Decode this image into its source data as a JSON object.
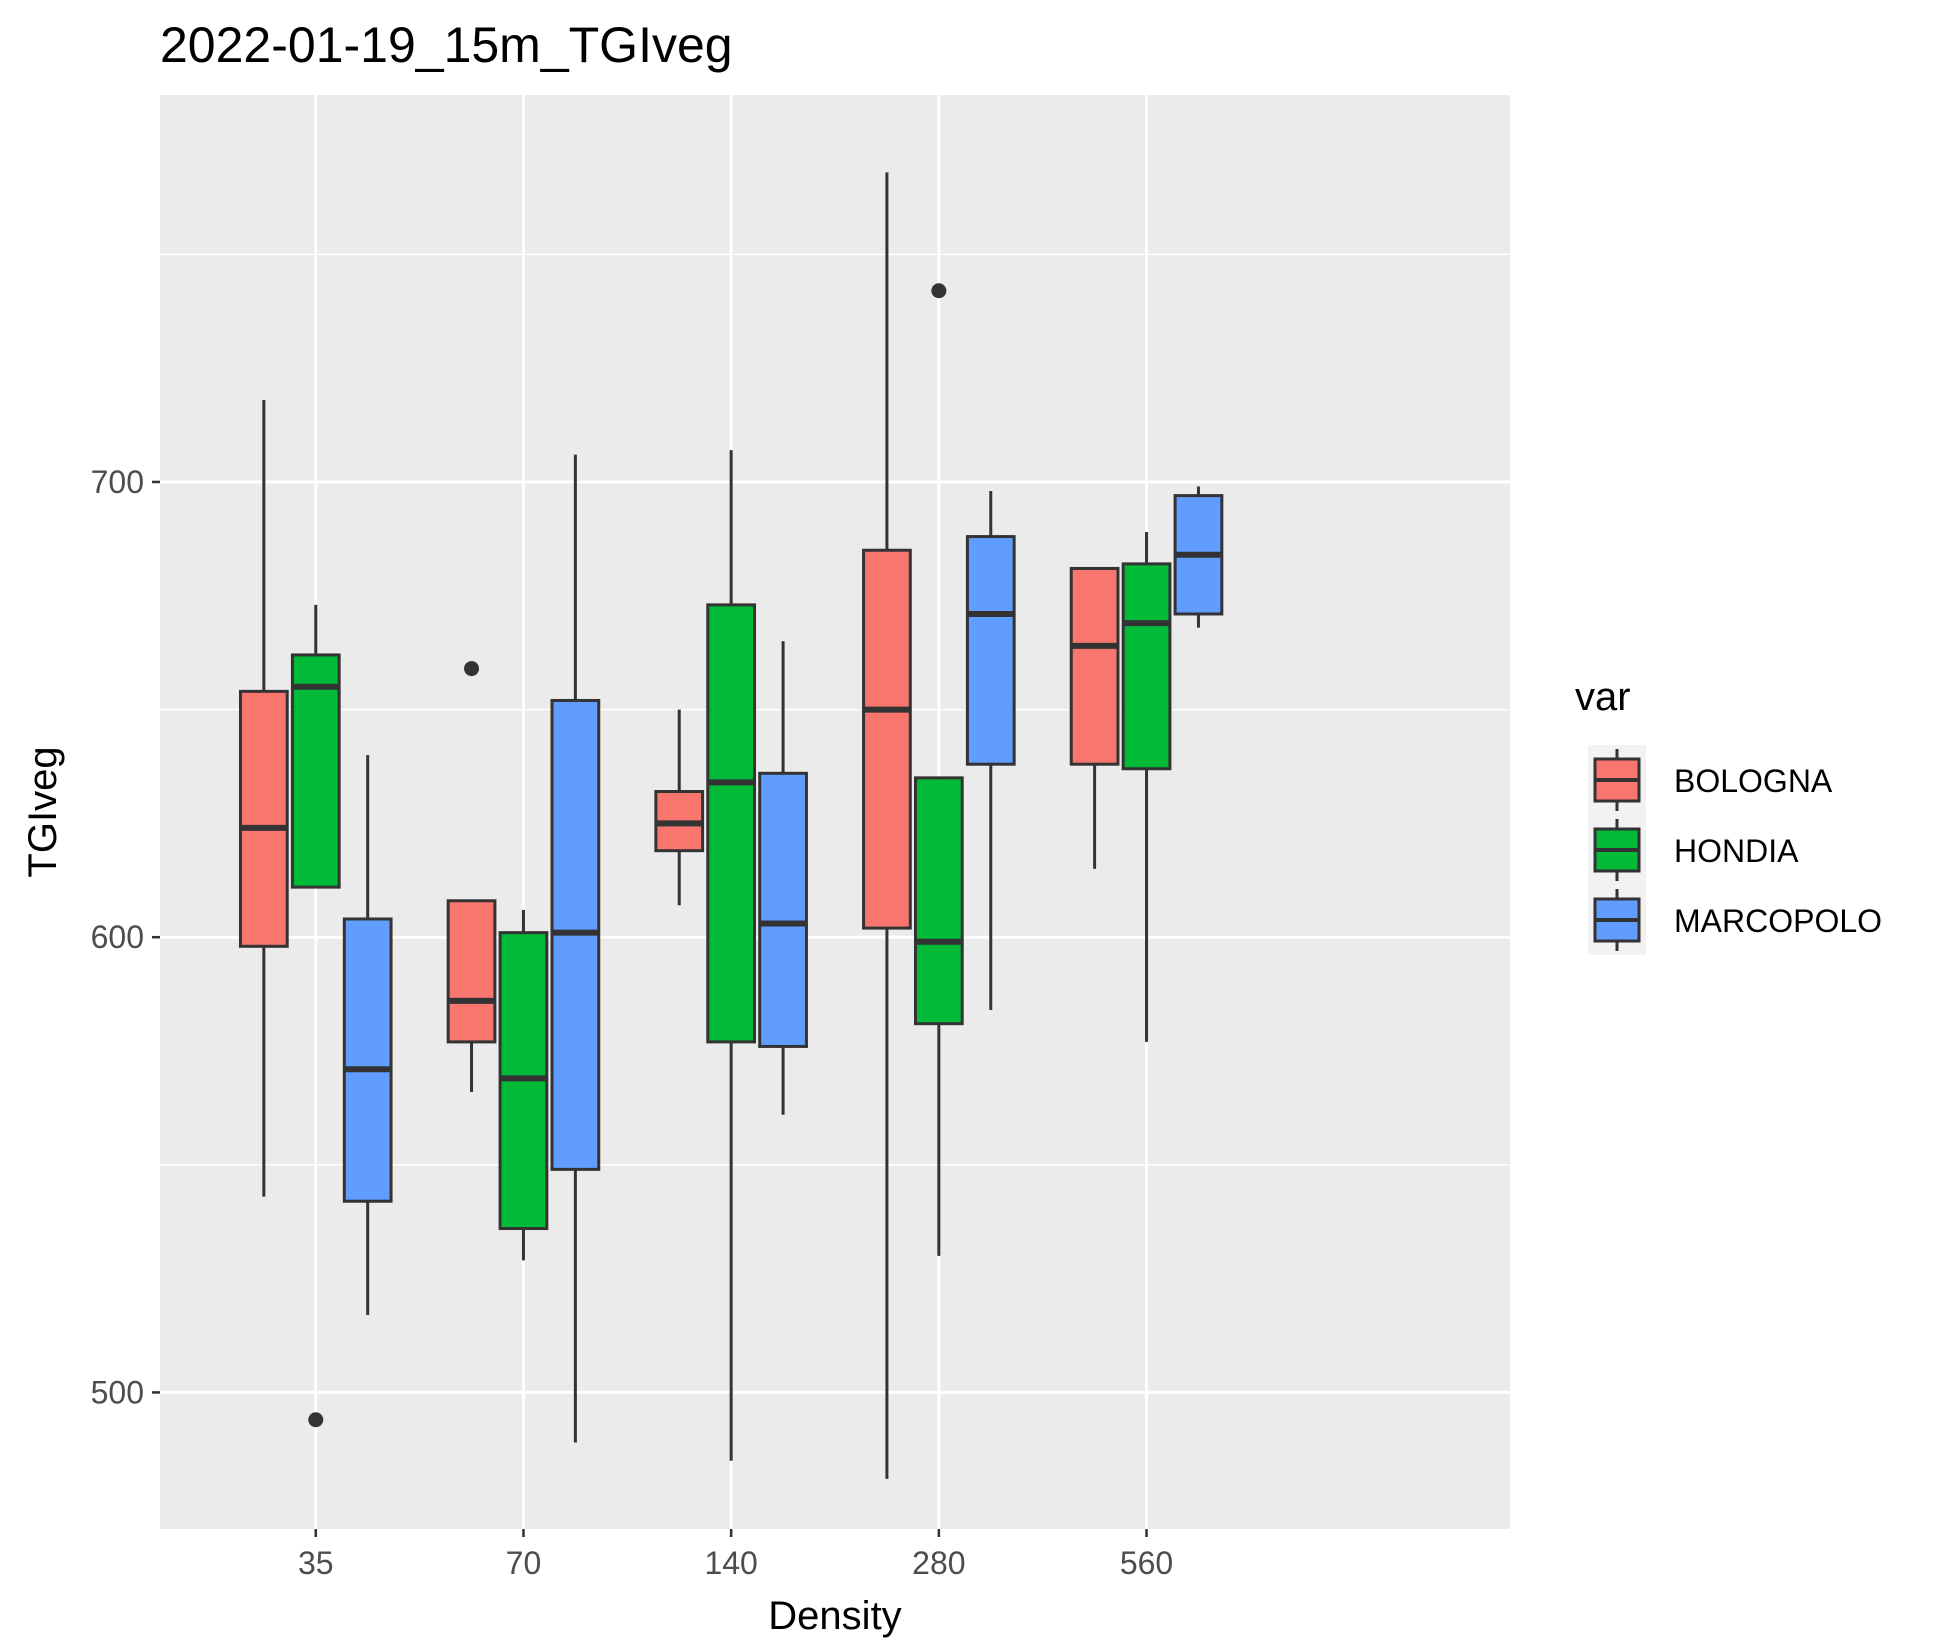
{
  "chart_data": {
    "type": "boxplot",
    "title": "2022-01-19_15m_TGIveg",
    "xlabel": "Density",
    "ylabel": "TGIveg",
    "categories": [
      "35",
      "70",
      "140",
      "280",
      "560"
    ],
    "y_ticks": [
      500,
      600,
      700
    ],
    "ylim": [
      470,
      785
    ],
    "grid": true,
    "legend": {
      "title": "var",
      "position": "right"
    },
    "series": [
      {
        "name": "BOLOGNA",
        "color": "#F8766D",
        "boxes": [
          {
            "category": "35",
            "whisker_low": 543,
            "q1": 598,
            "median": 624,
            "q3": 654,
            "whisker_high": 718,
            "outliers": []
          },
          {
            "category": "70",
            "whisker_low": 566,
            "q1": 577,
            "median": 586,
            "q3": 608,
            "whisker_high": 608,
            "outliers": [
              659
            ]
          },
          {
            "category": "140",
            "whisker_low": 607,
            "q1": 619,
            "median": 625,
            "q3": 632,
            "whisker_high": 650,
            "outliers": []
          },
          {
            "category": "280",
            "whisker_low": 481,
            "q1": 602,
            "median": 650,
            "q3": 685,
            "whisker_high": 768,
            "outliers": []
          },
          {
            "category": "560",
            "whisker_low": 615,
            "q1": 638,
            "median": 664,
            "q3": 681,
            "whisker_high": 681,
            "outliers": []
          }
        ]
      },
      {
        "name": "HONDIA",
        "color": "#00BA38",
        "boxes": [
          {
            "category": "35",
            "whisker_low": 611,
            "q1": 611,
            "median": 655,
            "q3": 662,
            "whisker_high": 673,
            "outliers": [
              494
            ]
          },
          {
            "category": "70",
            "whisker_low": 529,
            "q1": 536,
            "median": 569,
            "q3": 601,
            "whisker_high": 606,
            "outliers": []
          },
          {
            "category": "140",
            "whisker_low": 485,
            "q1": 577,
            "median": 634,
            "q3": 673,
            "whisker_high": 707,
            "outliers": []
          },
          {
            "category": "280",
            "whisker_low": 530,
            "q1": 581,
            "median": 599,
            "q3": 635,
            "whisker_high": 635,
            "outliers": [
              742
            ]
          },
          {
            "category": "560",
            "whisker_low": 577,
            "q1": 637,
            "median": 669,
            "q3": 682,
            "whisker_high": 689,
            "outliers": []
          }
        ]
      },
      {
        "name": "MARCOPOLO",
        "color": "#619CFF",
        "boxes": [
          {
            "category": "35",
            "whisker_low": 517,
            "q1": 542,
            "median": 571,
            "q3": 604,
            "whisker_high": 640,
            "outliers": []
          },
          {
            "category": "70",
            "whisker_low": 489,
            "q1": 549,
            "median": 601,
            "q3": 652,
            "whisker_high": 706,
            "outliers": []
          },
          {
            "category": "140",
            "whisker_low": 561,
            "q1": 576,
            "median": 603,
            "q3": 636,
            "whisker_high": 665,
            "outliers": []
          },
          {
            "category": "280",
            "whisker_low": 584,
            "q1": 638,
            "median": 671,
            "q3": 688,
            "whisker_high": 698,
            "outliers": []
          },
          {
            "category": "560",
            "whisker_low": 668,
            "q1": 671,
            "median": 684,
            "q3": 697,
            "whisker_high": 699,
            "outliers": []
          }
        ]
      }
    ]
  },
  "colors": {
    "panel_background": "#EBEBEB",
    "gridline": "#FFFFFF",
    "box_outline": "#333333"
  }
}
